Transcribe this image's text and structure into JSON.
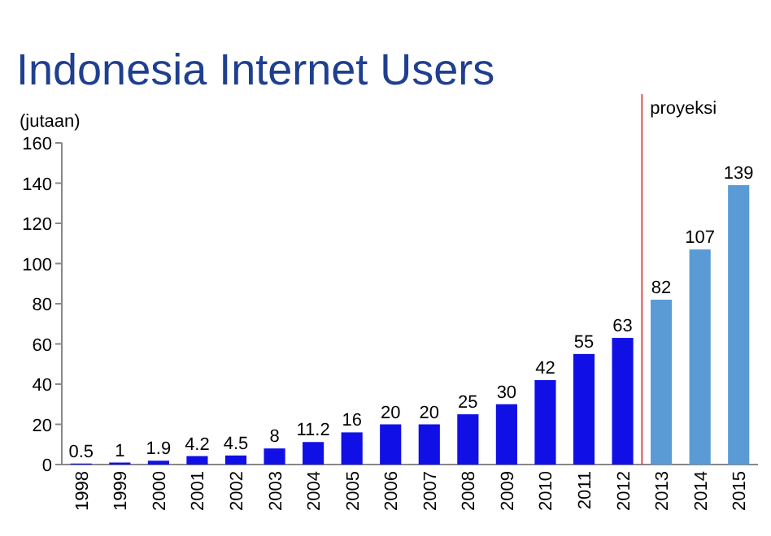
{
  "chart_data": {
    "type": "bar",
    "title": "Indonesia Internet Users",
    "ylabel": "(jutaan)",
    "x": [
      1998,
      1999,
      2000,
      2001,
      2002,
      2003,
      2004,
      2005,
      2006,
      2007,
      2008,
      2009,
      2010,
      2011,
      2012,
      2013,
      2014,
      2015
    ],
    "values": [
      0.5,
      1,
      1.9,
      4.2,
      4.5,
      8,
      11.2,
      16,
      20,
      20,
      25,
      30,
      42,
      55,
      63,
      82,
      107,
      139
    ],
    "colors": [
      "#1010e6",
      "#1010e6",
      "#1010e6",
      "#1010e6",
      "#1010e6",
      "#1010e6",
      "#1010e6",
      "#1010e6",
      "#1010e6",
      "#1010e6",
      "#1010e6",
      "#1010e6",
      "#1010e6",
      "#1010e6",
      "#1010e6",
      "#5b9bd5",
      "#5b9bd5",
      "#5b9bd5"
    ],
    "xlim": [
      1997.5,
      2015.5
    ],
    "xticks": [
      1998,
      1999,
      2000,
      2001,
      2002,
      2003,
      2004,
      2005,
      2006,
      2007,
      2008,
      2009,
      2010,
      2011,
      2012,
      2013,
      2014,
      2015
    ],
    "ylim": [
      0,
      160
    ],
    "yticks": [
      0,
      20,
      40,
      60,
      80,
      100,
      120,
      140,
      160
    ],
    "data_labels": true,
    "grid": false,
    "ref_lines": [
      {
        "axis": "x",
        "value": 2012.5,
        "label": "proyeksi",
        "color": "#d9534f"
      }
    ]
  }
}
